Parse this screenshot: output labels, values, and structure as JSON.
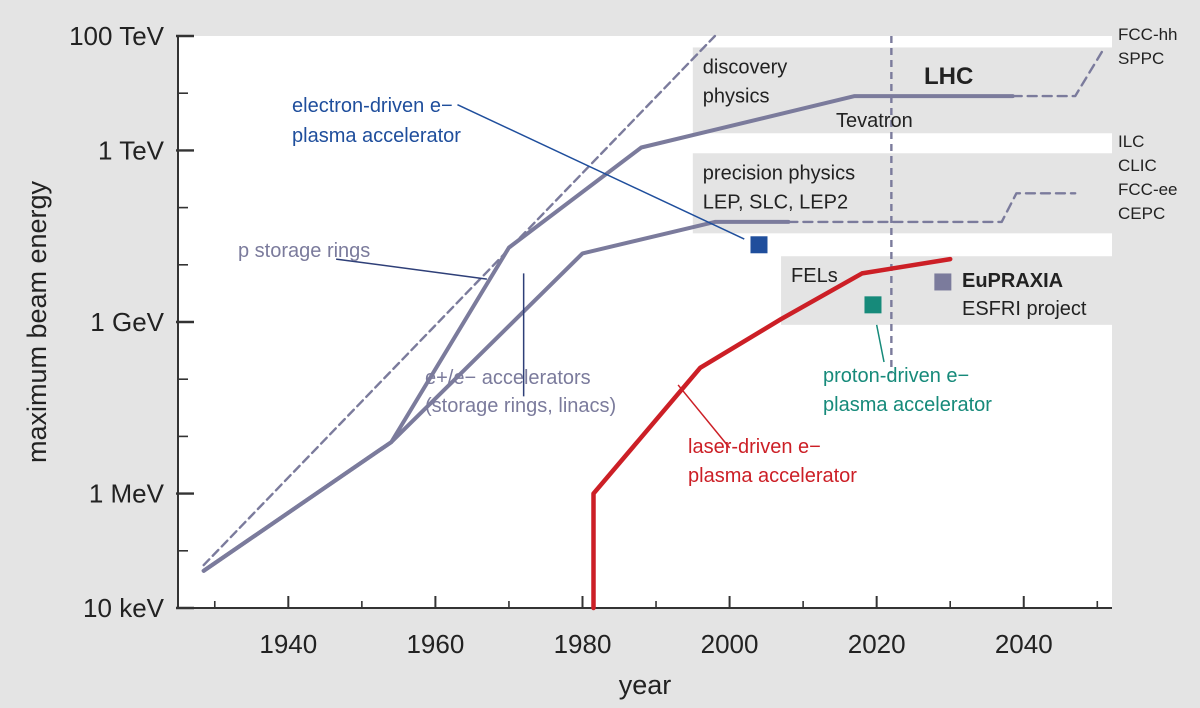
{
  "chart_data": {
    "type": "line",
    "title": "",
    "xlabel": "year",
    "ylabel": "maximum beam energy",
    "xlim": [
      1925,
      2052
    ],
    "ylim_log10_eV": [
      4,
      14
    ],
    "y_scale": "log",
    "x_ticks": [
      1940,
      1960,
      1980,
      2000,
      2020,
      2040
    ],
    "y_ticks": [
      {
        "label": "10 keV",
        "log10_eV": 4
      },
      {
        "label": "1 MeV",
        "log10_eV": 6
      },
      {
        "label": "1 GeV",
        "log10_eV": 9
      },
      {
        "label": "1 TeV",
        "log10_eV": 12
      },
      {
        "label": "100 TeV",
        "log10_eV": 14
      }
    ],
    "regions": [
      {
        "name": "discovery",
        "x": [
          1995,
          2052
        ],
        "y_log10": [
          12.3,
          13.8
        ],
        "lines": [
          "discovery",
          "physics"
        ]
      },
      {
        "name": "precision",
        "x": [
          1995,
          2052
        ],
        "y_log10": [
          10.55,
          11.95
        ],
        "lines": [
          "precision physics",
          "LEP, SLC, LEP2"
        ]
      },
      {
        "name": "fels",
        "x": [
          2007,
          2052
        ],
        "y_log10": [
          8.95,
          10.15
        ],
        "lines": [
          "FELs"
        ]
      }
    ],
    "series": [
      {
        "name": "p storage rings",
        "color": "#7b7b9c",
        "style": "solid",
        "x": [
          1928.5,
          1954,
          1970,
          1988,
          2017,
          2038.5
        ],
        "y_log10": [
          4.65,
          6.9,
          10.3,
          12.05,
          12.95,
          12.95
        ]
      },
      {
        "name": "p storage rings projection",
        "color": "#7b7b9c",
        "style": "dashed",
        "x": [
          2038.5,
          2047,
          2051
        ],
        "y_log10": [
          12.95,
          12.95,
          13.8
        ]
      },
      {
        "name": "e+/e- accelerators",
        "color": "#7b7b9c",
        "style": "solid",
        "x": [
          1928.5,
          1954,
          1980,
          1998,
          2008
        ],
        "y_log10": [
          4.65,
          6.9,
          10.2,
          10.75,
          10.75
        ]
      },
      {
        "name": "e+/e- accelerators projection",
        "color": "#7b7b9c",
        "style": "dashed",
        "x": [
          2008,
          2037,
          2039,
          2047
        ],
        "y_log10": [
          10.75,
          10.75,
          11.25,
          11.25
        ]
      },
      {
        "name": "Livingston trend",
        "color": "#7b7b9c",
        "style": "dashed",
        "x": [
          1928.5,
          1998
        ],
        "y_log10": [
          4.75,
          14.0
        ]
      },
      {
        "name": "laser-driven",
        "color": "#cc1f26",
        "style": "solid",
        "x": [
          1981.5,
          1981.5,
          1996,
          2007,
          2018,
          2030
        ],
        "y_log10": [
          4,
          6,
          8.2,
          9.05,
          9.85,
          10.1
        ]
      }
    ],
    "points": [
      {
        "name": "electron-driven",
        "x": 2004,
        "y_log10": 10.35,
        "color": "#1f4e9c"
      },
      {
        "name": "proton-driven",
        "x": 2019.5,
        "y_log10": 9.3,
        "color": "#168a7a"
      },
      {
        "name": "EuPRAXIA",
        "x": 2029,
        "y_log10": 9.7,
        "color": "#7b7b9c"
      }
    ],
    "vline": {
      "x": 2022,
      "color": "#7b7b9c",
      "style": "dashed"
    },
    "labels": {
      "electron_driven": [
        "electron-driven e−",
        "plasma accelerator"
      ],
      "p_storage": "p storage rings",
      "ee_accel": [
        "e+/e− accelerators",
        "(storage rings, linacs)"
      ],
      "laser_driven": [
        "laser-driven e−",
        "plasma accelerator"
      ],
      "proton_driven": [
        "proton-driven e−",
        "plasma accelerator"
      ],
      "lhc": "LHC",
      "tevatron": "Tevatron",
      "eupraxia": "EuPRAXIA",
      "esfri": "ESFRI project",
      "right_top": [
        "FCC-hh",
        "SPPC"
      ],
      "right_mid": [
        "ILC",
        "CLIC",
        "FCC-ee",
        "CEPC"
      ]
    },
    "colors": {
      "grey": "#7b7b9c",
      "blue": "#1f4e9c",
      "red": "#cc1f26",
      "teal": "#168a7a",
      "text": "#222222"
    }
  }
}
